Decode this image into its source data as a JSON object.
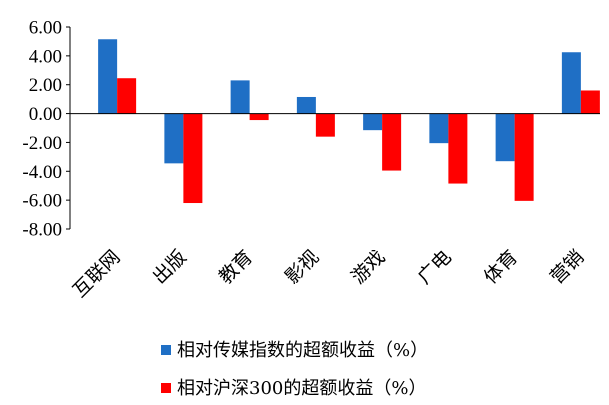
{
  "chart_data": {
    "type": "bar",
    "categories": [
      "互联网",
      "出版",
      "教育",
      "影视",
      "游戏",
      "广电",
      "体育",
      "营销"
    ],
    "series": [
      {
        "name": "相对传媒指数的超额收益（%）",
        "color": "#1F6FC5",
        "values": [
          5.15,
          -3.45,
          2.3,
          1.15,
          -1.15,
          -2.05,
          -3.3,
          4.25
        ]
      },
      {
        "name": "相对沪深300的超额收益（%）",
        "color": "#FF0000",
        "values": [
          2.45,
          -6.2,
          -0.45,
          -1.6,
          -3.95,
          -4.85,
          -6.05,
          1.6
        ]
      }
    ],
    "y_ticks": [
      "6.00",
      "4.00",
      "2.00",
      "0.00",
      "-2.00",
      "-4.00",
      "-6.00",
      "-8.00"
    ],
    "ylim": [
      -8,
      6
    ],
    "legend_position": "bottom",
    "grid": false
  }
}
